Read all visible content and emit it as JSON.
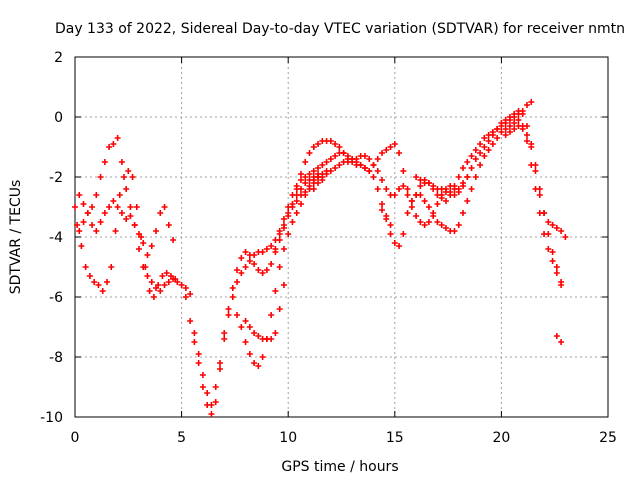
{
  "chart_data": {
    "type": "scatter",
    "title": "Day 133 of 2022, Sidereal Day-to-day VTEC variation (SDTVAR) for receiver nmtn",
    "xlabel": "GPS time / hours",
    "ylabel": "SDTVAR / TECUs",
    "xlim": [
      0,
      25
    ],
    "ylim": [
      -10,
      2
    ],
    "x_ticks": [
      "0",
      "5",
      "10",
      "15",
      "20",
      "25"
    ],
    "y_ticks": [
      "-10",
      "-8",
      "-6",
      "-4",
      "-2",
      "0",
      "2"
    ],
    "grid": true,
    "marker": "+",
    "color": "#ff0000",
    "series": [
      {
        "x": [
          0.0,
          0.2,
          0.4,
          0.6,
          0.8,
          1.0,
          1.2,
          1.4,
          1.6,
          1.8,
          2.0,
          2.2,
          2.4,
          2.6,
          2.8,
          3.0,
          3.2,
          3.4,
          3.6,
          3.8,
          4.0,
          4.2,
          4.4,
          4.6,
          4.8,
          5.0,
          5.2,
          5.4
        ],
        "y": [
          -3.0,
          -3.8,
          -3.5,
          -3.2,
          -3.0,
          -2.6,
          -2.0,
          -1.5,
          -1.0,
          -0.9,
          -0.7,
          -1.5,
          -2.4,
          -3.0,
          -3.6,
          -4.4,
          -5.0,
          -5.3,
          -5.5,
          -5.7,
          -5.8,
          -5.6,
          -5.5,
          -5.4,
          -5.5,
          -5.6,
          -5.7,
          -5.9
        ]
      },
      {
        "x": [
          0.1,
          0.3,
          0.5,
          0.7,
          0.9,
          1.1,
          1.3,
          1.5,
          1.7,
          1.9,
          2.1,
          2.3,
          2.5,
          2.7,
          2.9,
          3.1,
          3.3,
          3.5,
          3.7,
          3.9,
          4.1,
          4.3,
          4.5,
          4.7
        ],
        "y": [
          -3.6,
          -4.3,
          -5.0,
          -5.3,
          -5.5,
          -5.6,
          -5.8,
          -5.5,
          -5.0,
          -3.8,
          -2.6,
          -2.0,
          -1.8,
          -2.0,
          -3.0,
          -4.0,
          -5.0,
          -5.8,
          -6.0,
          -5.6,
          -5.3,
          -5.2,
          -5.3,
          -5.4
        ]
      },
      {
        "x": [
          0.2,
          0.4,
          0.6,
          0.8,
          1.0,
          1.2,
          1.4,
          1.6,
          1.8,
          2.0,
          2.2,
          2.4,
          2.6,
          2.8,
          3.0,
          3.2,
          3.4,
          3.6,
          3.8,
          4.0,
          4.2,
          4.4,
          4.6
        ],
        "y": [
          -2.6,
          -2.9,
          -3.2,
          -3.6,
          -3.8,
          -3.5,
          -3.2,
          -3.0,
          -2.8,
          -3.0,
          -3.2,
          -3.4,
          -3.3,
          -3.6,
          -3.9,
          -4.2,
          -4.6,
          -4.3,
          -3.8,
          -3.2,
          -3.0,
          -3.6,
          -4.1
        ]
      },
      {
        "x": [
          5.2,
          5.4,
          5.6,
          5.8,
          6.0,
          6.2,
          6.4,
          6.6,
          6.8,
          7.0,
          7.2,
          7.4,
          7.6,
          7.8,
          8.0,
          8.2,
          8.4,
          8.6,
          8.8,
          9.0,
          9.2,
          9.4,
          9.6,
          9.8,
          10.0,
          10.2,
          10.4,
          10.6,
          10.8,
          11.0,
          11.2,
          11.4,
          11.6
        ],
        "y": [
          -6.0,
          -6.8,
          -7.5,
          -8.2,
          -9.0,
          -9.6,
          -9.9,
          -9.5,
          -8.4,
          -7.4,
          -6.6,
          -6.0,
          -5.5,
          -5.2,
          -5.0,
          -4.8,
          -4.6,
          -4.5,
          -4.5,
          -4.4,
          -4.3,
          -4.1,
          -3.9,
          -3.6,
          -3.2,
          -2.9,
          -2.6,
          -2.4,
          -2.2,
          -2.1,
          -2.0,
          -2.0,
          -2.1
        ]
      },
      {
        "x": [
          5.6,
          5.8,
          6.0,
          6.2,
          6.4,
          6.6,
          6.8,
          7.0,
          7.2,
          7.4,
          7.6,
          7.8,
          8.0,
          8.2,
          8.4,
          8.6,
          8.8,
          9.0,
          9.2,
          9.4,
          9.6,
          9.8,
          10.0,
          10.2,
          10.4,
          10.6,
          10.8,
          11.0,
          11.2,
          11.4,
          11.6,
          11.8
        ],
        "y": [
          -7.2,
          -7.9,
          -8.6,
          -9.2,
          -9.6,
          -9.0,
          -8.2,
          -7.2,
          -6.4,
          -5.7,
          -5.1,
          -4.7,
          -4.5,
          -4.6,
          -4.9,
          -5.1,
          -5.2,
          -5.1,
          -4.9,
          -4.5,
          -4.1,
          -3.7,
          -3.3,
          -3.0,
          -2.8,
          -2.6,
          -2.5,
          -2.4,
          -2.2,
          -2.0,
          -1.9,
          -1.8
        ]
      },
      {
        "x": [
          7.6,
          7.8,
          8.0,
          8.2,
          8.4,
          8.6,
          8.8,
          9.0,
          9.2,
          9.4,
          9.6,
          9.8,
          10.0,
          10.2,
          10.4,
          10.6,
          10.8,
          11.0,
          11.2,
          11.4
        ],
        "y": [
          -6.6,
          -7.0,
          -7.5,
          -7.9,
          -8.2,
          -8.3,
          -8.0,
          -7.4,
          -6.6,
          -5.8,
          -5.0,
          -4.4,
          -3.9,
          -3.5,
          -3.2,
          -2.9,
          -2.6,
          -2.3,
          -2.1,
          -1.9
        ]
      },
      {
        "x": [
          8.0,
          8.2,
          8.4,
          8.6,
          8.8,
          9.0,
          9.2,
          9.4,
          9.6,
          9.8
        ],
        "y": [
          -6.8,
          -7.0,
          -7.2,
          -7.3,
          -7.4,
          -7.4,
          -7.4,
          -7.2,
          -6.4,
          -5.6
        ]
      },
      {
        "x": [
          9.4,
          9.6,
          9.8,
          10.0,
          10.2,
          10.4,
          10.6,
          10.8,
          11.0,
          11.2,
          11.4,
          11.6,
          11.8,
          12.0,
          12.2,
          12.4,
          12.6,
          12.8,
          13.0,
          13.2,
          13.4,
          13.6,
          13.8,
          14.0,
          14.2,
          14.4,
          14.6,
          14.8,
          15.0,
          15.2,
          15.4,
          15.6,
          15.8,
          16.0,
          16.2,
          16.4,
          16.6,
          16.8,
          17.0,
          17.2,
          17.4,
          17.6,
          17.8,
          18.0,
          18.2,
          18.4,
          18.6,
          18.8,
          19.0,
          19.2,
          19.4,
          19.6,
          19.8,
          20.0,
          20.2,
          20.4,
          20.6,
          20.8,
          21.0,
          21.2,
          21.4
        ],
        "y": [
          -4.4,
          -3.8,
          -3.4,
          -3.0,
          -2.6,
          -2.3,
          -2.1,
          -2.0,
          -1.9,
          -1.8,
          -1.7,
          -1.6,
          -1.5,
          -1.4,
          -1.3,
          -1.2,
          -1.2,
          -1.3,
          -1.4,
          -1.5,
          -1.6,
          -1.7,
          -1.8,
          -1.6,
          -1.4,
          -1.2,
          -1.1,
          -1.0,
          -0.9,
          -1.2,
          -1.8,
          -2.4,
          -2.8,
          -2.6,
          -2.3,
          -2.1,
          -2.2,
          -2.4,
          -2.6,
          -2.7,
          -2.8,
          -2.6,
          -2.3,
          -2.0,
          -1.7,
          -1.5,
          -1.3,
          -1.1,
          -0.9,
          -0.7,
          -0.6,
          -0.5,
          -0.4,
          -0.3,
          -0.2,
          -0.1,
          0.0,
          0.1,
          0.2,
          0.4,
          0.5
        ]
      },
      {
        "x": [
          10.4,
          10.6,
          10.8,
          11.0,
          11.2,
          11.4,
          11.6,
          11.8,
          12.0,
          12.2,
          12.4,
          12.6,
          12.8,
          13.0,
          13.2,
          13.4,
          13.6,
          13.8,
          14.0,
          14.2,
          14.4,
          14.6,
          14.8,
          15.0,
          15.2,
          15.4,
          15.6,
          15.8,
          16.0,
          16.2,
          16.4,
          16.6,
          16.8,
          17.0,
          17.2,
          17.4,
          17.6,
          17.8,
          18.0,
          18.2,
          18.4,
          18.6,
          18.8,
          19.0,
          19.2,
          19.4,
          19.6,
          19.8,
          20.0,
          20.2,
          20.4,
          20.6,
          20.8,
          21.0,
          21.2,
          21.4,
          21.6,
          21.8,
          22.0,
          22.2,
          22.4,
          22.6,
          22.8
        ],
        "y": [
          -2.4,
          -1.9,
          -1.5,
          -1.2,
          -1.0,
          -0.9,
          -0.8,
          -0.8,
          -0.8,
          -0.9,
          -1.0,
          -1.2,
          -1.4,
          -1.5,
          -1.6,
          -1.6,
          -1.7,
          -1.8,
          -2.0,
          -2.4,
          -2.9,
          -3.4,
          -3.9,
          -4.2,
          -4.3,
          -3.9,
          -3.2,
          -2.8,
          -2.6,
          -2.6,
          -2.8,
          -3.0,
          -3.3,
          -3.5,
          -3.6,
          -3.7,
          -3.8,
          -3.8,
          -3.6,
          -3.2,
          -2.8,
          -2.4,
          -2.0,
          -1.6,
          -1.3,
          -1.1,
          -0.9,
          -0.7,
          -0.5,
          -0.4,
          -0.3,
          -0.2,
          -0.1,
          -0.3,
          -0.8,
          -1.6,
          -2.4,
          -3.2,
          -3.9,
          -4.4,
          -4.8,
          -5.2,
          -5.5
        ]
      },
      {
        "x": [
          11.2,
          11.4,
          11.6,
          11.8,
          12.0,
          12.2,
          12.4,
          12.6,
          12.8,
          13.0,
          13.2,
          13.4,
          13.6,
          13.8,
          14.0,
          14.2,
          14.4,
          14.6,
          14.8,
          15.0,
          15.2,
          15.4,
          15.6,
          15.8,
          16.0,
          16.2,
          16.4,
          16.6,
          16.8,
          17.0,
          17.2,
          17.4,
          17.6,
          17.8,
          18.0,
          18.2,
          18.4,
          18.6,
          18.8,
          19.0,
          19.2,
          19.4,
          19.6,
          19.8,
          20.0,
          20.2,
          20.4,
          20.6,
          20.8,
          21.0,
          21.2,
          21.4,
          21.6,
          21.8,
          22.0,
          22.2,
          22.4,
          22.6,
          22.8
        ],
        "y": [
          -2.4,
          -2.2,
          -2.0,
          -1.9,
          -1.8,
          -1.7,
          -1.6,
          -1.5,
          -1.5,
          -1.4,
          -1.4,
          -1.3,
          -1.3,
          -1.4,
          -1.6,
          -1.8,
          -2.1,
          -2.4,
          -2.6,
          -2.6,
          -2.4,
          -2.3,
          -2.6,
          -3.0,
          -3.3,
          -3.5,
          -3.6,
          -3.5,
          -3.2,
          -2.9,
          -2.6,
          -2.4,
          -2.3,
          -2.4,
          -2.5,
          -2.3,
          -2.0,
          -1.7,
          -1.4,
          -1.2,
          -1.0,
          -0.8,
          -0.6,
          -0.4,
          -0.2,
          -0.1,
          0.0,
          0.1,
          0.2,
          0.1,
          -0.3,
          -0.9,
          -1.6,
          -2.4,
          -3.2,
          -3.9,
          -4.5,
          -5.0,
          -5.6
        ]
      },
      {
        "x": [
          22.6,
          22.8
        ],
        "y": [
          -7.3,
          -7.5
        ]
      },
      {
        "x": [
          16.0,
          16.2,
          16.4,
          16.6,
          16.8,
          17.0,
          17.2,
          17.4,
          17.6,
          17.8,
          18.0,
          18.2,
          18.4
        ],
        "y": [
          -2.0,
          -2.1,
          -2.2,
          -2.2,
          -2.3,
          -2.4,
          -2.4,
          -2.5,
          -2.5,
          -2.6,
          -2.4,
          -2.2,
          -2.0
        ]
      },
      {
        "x": [
          14.4,
          14.6,
          14.8
        ],
        "y": [
          -3.1,
          -3.3,
          -3.6
        ]
      },
      {
        "x": [
          20.2,
          20.4,
          20.6,
          20.8,
          21.0,
          21.2,
          21.4,
          21.6,
          21.8,
          22.0,
          22.2,
          22.4,
          22.6,
          22.8,
          23.0
        ],
        "y": [
          -0.6,
          -0.5,
          -0.4,
          -0.3,
          -0.4,
          -0.6,
          -1.0,
          -1.8,
          -2.6,
          -3.2,
          -3.5,
          -3.6,
          -3.7,
          -3.8,
          -4.0
        ]
      }
    ]
  }
}
